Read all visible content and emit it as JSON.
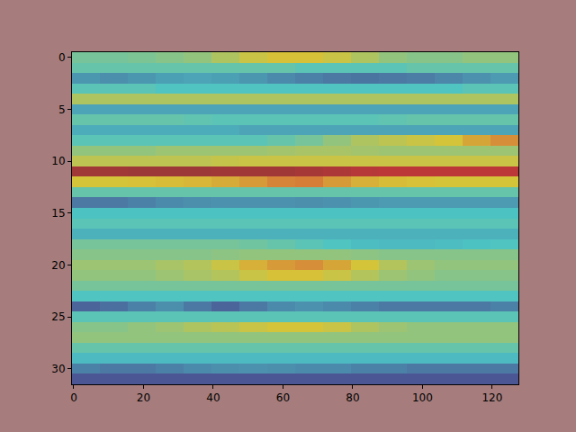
{
  "chart_data": {
    "type": "heatmap",
    "x": [
      3.5,
      11.5,
      19.5,
      27.5,
      35.5,
      43.5,
      51.5,
      59.5,
      67.5,
      75.5,
      83.5,
      91.5,
      99.5,
      107.5,
      115.5,
      123.5
    ],
    "y": [
      0,
      1,
      2,
      3,
      4,
      5,
      6,
      7,
      8,
      9,
      10,
      11,
      12,
      13,
      14,
      15,
      16,
      17,
      18,
      19,
      20,
      21,
      22,
      23,
      24,
      25,
      26,
      27,
      28,
      29,
      30,
      31
    ],
    "cells": [
      [
        0.45,
        0.45,
        0.46,
        0.48,
        0.5,
        0.55,
        0.6,
        0.63,
        0.63,
        0.6,
        0.55,
        0.5,
        0.48,
        0.48,
        0.5,
        0.5
      ],
      [
        0.42,
        0.42,
        0.42,
        0.42,
        0.42,
        0.42,
        0.42,
        0.42,
        0.4,
        0.4,
        0.4,
        0.4,
        0.42,
        0.42,
        0.42,
        0.42
      ],
      [
        0.27,
        0.25,
        0.27,
        0.29,
        0.3,
        0.29,
        0.27,
        0.24,
        0.22,
        0.2,
        0.19,
        0.2,
        0.21,
        0.23,
        0.26,
        0.28
      ],
      [
        0.4,
        0.4,
        0.4,
        0.38,
        0.38,
        0.38,
        0.38,
        0.38,
        0.38,
        0.38,
        0.38,
        0.38,
        0.38,
        0.38,
        0.4,
        0.4
      ],
      [
        0.55,
        0.55,
        0.55,
        0.55,
        0.55,
        0.55,
        0.55,
        0.55,
        0.55,
        0.55,
        0.55,
        0.55,
        0.55,
        0.55,
        0.55,
        0.55
      ],
      [
        0.3,
        0.3,
        0.3,
        0.3,
        0.3,
        0.3,
        0.3,
        0.3,
        0.3,
        0.3,
        0.3,
        0.3,
        0.3,
        0.3,
        0.3,
        0.3
      ],
      [
        0.42,
        0.42,
        0.42,
        0.42,
        0.41,
        0.4,
        0.4,
        0.4,
        0.4,
        0.4,
        0.4,
        0.41,
        0.42,
        0.42,
        0.42,
        0.42
      ],
      [
        0.32,
        0.32,
        0.32,
        0.32,
        0.32,
        0.32,
        0.3,
        0.3,
        0.3,
        0.3,
        0.3,
        0.3,
        0.3,
        0.3,
        0.3,
        0.3
      ],
      [
        0.4,
        0.4,
        0.4,
        0.4,
        0.4,
        0.4,
        0.4,
        0.42,
        0.45,
        0.5,
        0.55,
        0.58,
        0.6,
        0.62,
        0.68,
        0.72
      ],
      [
        0.5,
        0.5,
        0.5,
        0.52,
        0.52,
        0.52,
        0.52,
        0.53,
        0.54,
        0.54,
        0.53,
        0.52,
        0.52,
        0.52,
        0.52,
        0.52
      ],
      [
        0.58,
        0.58,
        0.58,
        0.58,
        0.58,
        0.59,
        0.6,
        0.6,
        0.6,
        0.6,
        0.6,
        0.6,
        0.6,
        0.6,
        0.6,
        0.6
      ],
      [
        0.97,
        0.97,
        0.98,
        0.98,
        0.98,
        0.97,
        0.97,
        0.97,
        0.96,
        0.95,
        0.93,
        0.92,
        0.92,
        0.92,
        0.92,
        0.92
      ],
      [
        0.62,
        0.62,
        0.63,
        0.64,
        0.65,
        0.67,
        0.7,
        0.74,
        0.75,
        0.7,
        0.66,
        0.64,
        0.63,
        0.62,
        0.62,
        0.62
      ],
      [
        0.42,
        0.42,
        0.42,
        0.42,
        0.42,
        0.42,
        0.42,
        0.42,
        0.42,
        0.42,
        0.42,
        0.42,
        0.42,
        0.42,
        0.42,
        0.42
      ],
      [
        0.2,
        0.2,
        0.22,
        0.24,
        0.25,
        0.26,
        0.26,
        0.26,
        0.25,
        0.26,
        0.27,
        0.28,
        0.28,
        0.28,
        0.28,
        0.28
      ],
      [
        0.37,
        0.37,
        0.37,
        0.37,
        0.37,
        0.37,
        0.37,
        0.37,
        0.37,
        0.37,
        0.37,
        0.37,
        0.37,
        0.37,
        0.37,
        0.37
      ],
      [
        0.4,
        0.4,
        0.4,
        0.4,
        0.4,
        0.4,
        0.4,
        0.4,
        0.4,
        0.4,
        0.4,
        0.4,
        0.4,
        0.4,
        0.4,
        0.4
      ],
      [
        0.33,
        0.33,
        0.33,
        0.33,
        0.33,
        0.33,
        0.33,
        0.33,
        0.33,
        0.33,
        0.33,
        0.33,
        0.33,
        0.33,
        0.33,
        0.33
      ],
      [
        0.45,
        0.45,
        0.45,
        0.45,
        0.45,
        0.45,
        0.44,
        0.42,
        0.4,
        0.38,
        0.36,
        0.35,
        0.35,
        0.36,
        0.37,
        0.38
      ],
      [
        0.48,
        0.48,
        0.48,
        0.48,
        0.48,
        0.49,
        0.5,
        0.5,
        0.5,
        0.5,
        0.49,
        0.48,
        0.48,
        0.48,
        0.48,
        0.48
      ],
      [
        0.52,
        0.52,
        0.52,
        0.54,
        0.56,
        0.6,
        0.66,
        0.7,
        0.72,
        0.68,
        0.62,
        0.56,
        0.52,
        0.5,
        0.5,
        0.5
      ],
      [
        0.5,
        0.5,
        0.5,
        0.52,
        0.54,
        0.56,
        0.6,
        0.63,
        0.63,
        0.6,
        0.56,
        0.52,
        0.5,
        0.48,
        0.48,
        0.48
      ],
      [
        0.45,
        0.45,
        0.45,
        0.45,
        0.45,
        0.45,
        0.45,
        0.45,
        0.45,
        0.45,
        0.45,
        0.45,
        0.45,
        0.45,
        0.45,
        0.45
      ],
      [
        0.38,
        0.38,
        0.38,
        0.38,
        0.38,
        0.38,
        0.38,
        0.38,
        0.38,
        0.38,
        0.38,
        0.38,
        0.38,
        0.38,
        0.38,
        0.38
      ],
      [
        0.15,
        0.18,
        0.22,
        0.25,
        0.2,
        0.15,
        0.2,
        0.24,
        0.26,
        0.24,
        0.22,
        0.2,
        0.2,
        0.2,
        0.2,
        0.22
      ],
      [
        0.4,
        0.4,
        0.4,
        0.4,
        0.4,
        0.4,
        0.4,
        0.4,
        0.4,
        0.4,
        0.4,
        0.4,
        0.4,
        0.4,
        0.4,
        0.4
      ],
      [
        0.48,
        0.48,
        0.5,
        0.52,
        0.55,
        0.57,
        0.6,
        0.62,
        0.62,
        0.6,
        0.55,
        0.52,
        0.5,
        0.5,
        0.5,
        0.5
      ],
      [
        0.5,
        0.5,
        0.5,
        0.5,
        0.5,
        0.5,
        0.5,
        0.5,
        0.5,
        0.5,
        0.5,
        0.5,
        0.5,
        0.5,
        0.5,
        0.5
      ],
      [
        0.42,
        0.42,
        0.42,
        0.42,
        0.42,
        0.42,
        0.42,
        0.42,
        0.42,
        0.42,
        0.42,
        0.42,
        0.42,
        0.42,
        0.42,
        0.42
      ],
      [
        0.35,
        0.35,
        0.35,
        0.35,
        0.35,
        0.35,
        0.35,
        0.35,
        0.35,
        0.35,
        0.35,
        0.35,
        0.35,
        0.35,
        0.35,
        0.35
      ],
      [
        0.22,
        0.2,
        0.2,
        0.22,
        0.24,
        0.25,
        0.26,
        0.25,
        0.24,
        0.24,
        0.22,
        0.22,
        0.2,
        0.2,
        0.2,
        0.2
      ],
      [
        0.12,
        0.12,
        0.12,
        0.12,
        0.12,
        0.12,
        0.12,
        0.12,
        0.12,
        0.12,
        0.12,
        0.12,
        0.12,
        0.12,
        0.12,
        0.12
      ]
    ],
    "zlim": [
      0,
      1
    ],
    "xlim": [
      -0.5,
      127.5
    ],
    "ylim": [
      31.5,
      -0.5
    ],
    "xticks": [
      0,
      20,
      40,
      60,
      80,
      100,
      120
    ],
    "yticks": [
      0,
      5,
      10,
      15,
      20,
      25,
      30
    ],
    "grid": false
  }
}
